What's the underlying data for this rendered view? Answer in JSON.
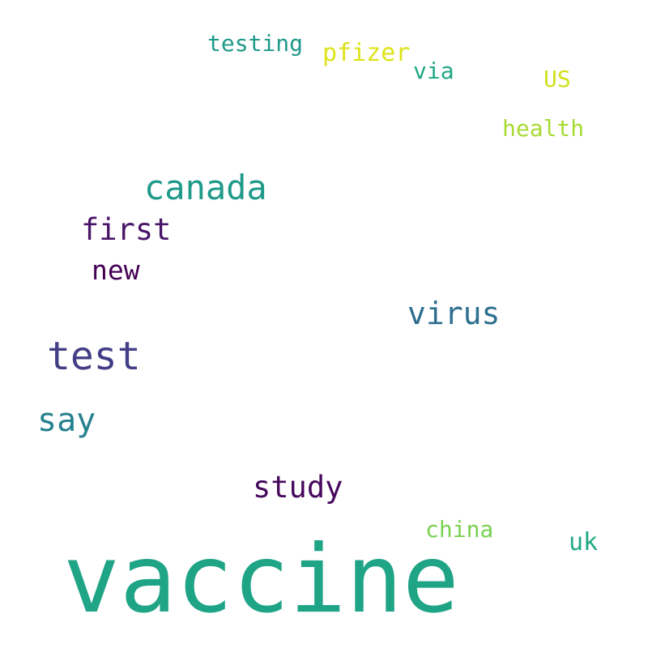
{
  "words": {
    "vaccine": {
      "text": "vaccine",
      "color": "#20A486"
    },
    "test": {
      "text": "test",
      "color": "#433E85"
    },
    "canada": {
      "text": "canada",
      "color": "#1F9A8A"
    },
    "virus": {
      "text": "virus",
      "color": "#2E6E8E"
    },
    "say": {
      "text": "say",
      "color": "#26818E"
    },
    "first": {
      "text": "first",
      "color": "#481467"
    },
    "study": {
      "text": "study",
      "color": "#46085C"
    },
    "new": {
      "text": "new",
      "color": "#440154"
    },
    "testing": {
      "text": "testing",
      "color": "#1F9A8A"
    },
    "pfizer": {
      "text": "pfizer",
      "color": "#DDE318"
    },
    "health": {
      "text": "health",
      "color": "#A8DB34"
    },
    "china": {
      "text": "china",
      "color": "#7AD151"
    },
    "via": {
      "text": "via",
      "color": "#22A884"
    },
    "us": {
      "text": "US",
      "color": "#D0E11C"
    },
    "uk": {
      "text": "uk",
      "color": "#22A884"
    }
  }
}
